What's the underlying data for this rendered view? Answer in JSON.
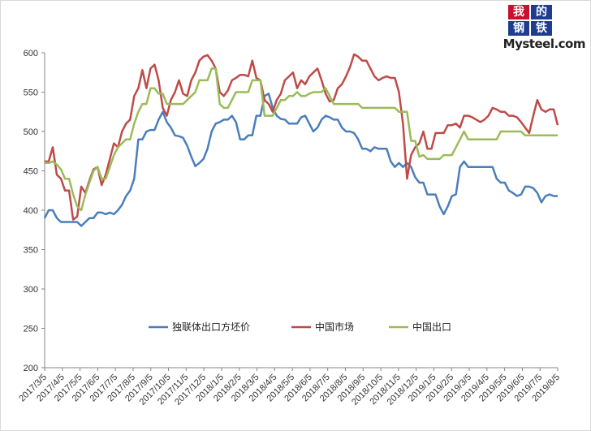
{
  "logo": {
    "chars": [
      "我",
      "的",
      "钢",
      "铁"
    ],
    "brand": "Mysteel.com"
  },
  "chart_data": {
    "type": "line",
    "title": "",
    "xlabel": "",
    "ylabel": "",
    "ylim": [
      200,
      600
    ],
    "yticks": [
      200,
      250,
      300,
      350,
      400,
      450,
      500,
      550,
      600
    ],
    "grid": false,
    "legend_position": "bottom-center",
    "xticks": [
      "2017/3/5",
      "2017/4/5",
      "2017/5/5",
      "2017/6/5",
      "2017/7/5",
      "2017/8/5",
      "2017/9/5",
      "2017/10/5",
      "2017/11/5",
      "2017/12/5",
      "2018/1/5",
      "2018/2/5",
      "2018/3/5",
      "2018/4/5",
      "2018/5/5",
      "2018/6/5",
      "2018/7/5",
      "2018/8/5",
      "2018/9/5",
      "2018/10/5",
      "2018/11/5",
      "2018/12/5",
      "2019/1/5",
      "2019/2/5",
      "2019/3/5",
      "2019/4/5",
      "2019/5/5",
      "2019/6/5",
      "2019/7/5",
      "2019/8/5"
    ],
    "series": [
      {
        "name": "独联体出口方坯价",
        "color": "#4a7ebb",
        "values": [
          390,
          400,
          400,
          390,
          385,
          385,
          385,
          385,
          385,
          380,
          385,
          390,
          390,
          397,
          397,
          395,
          397,
          395,
          400,
          407,
          418,
          425,
          440,
          490,
          490,
          500,
          502,
          502,
          515,
          525,
          512,
          505,
          495,
          494,
          492,
          482,
          468,
          456,
          460,
          465,
          478,
          500,
          510,
          512,
          515,
          515,
          520,
          512,
          490,
          490,
          495,
          495,
          520,
          520,
          545,
          548,
          530,
          520,
          516,
          515,
          510,
          510,
          510,
          518,
          520,
          510,
          500,
          505,
          515,
          520,
          518,
          515,
          515,
          505,
          500,
          500,
          498,
          490,
          478,
          478,
          475,
          480,
          478,
          478,
          478,
          462,
          455,
          460,
          455,
          460,
          455,
          442,
          435,
          435,
          420,
          420,
          420,
          405,
          395,
          405,
          418,
          420,
          455,
          462,
          455,
          455,
          455,
          455,
          455,
          455,
          455,
          440,
          435,
          435,
          425,
          422,
          418,
          420,
          430,
          430,
          428,
          422,
          410,
          418,
          420,
          418,
          418
        ]
      },
      {
        "name": "中国市场",
        "color": "#be4b48",
        "values": [
          462,
          462,
          480,
          445,
          440,
          425,
          425,
          388,
          392,
          430,
          422,
          438,
          452,
          455,
          432,
          445,
          465,
          485,
          480,
          500,
          510,
          515,
          545,
          555,
          578,
          555,
          580,
          585,
          565,
          530,
          520,
          540,
          550,
          565,
          548,
          545,
          565,
          575,
          590,
          595,
          597,
          590,
          580,
          550,
          545,
          552,
          565,
          568,
          572,
          572,
          570,
          590,
          568,
          565,
          540,
          535,
          525,
          540,
          548,
          565,
          570,
          575,
          555,
          565,
          560,
          570,
          575,
          580,
          565,
          548,
          538,
          540,
          555,
          560,
          570,
          582,
          598,
          595,
          590,
          590,
          580,
          570,
          565,
          568,
          570,
          568,
          568,
          550,
          510,
          440,
          470,
          480,
          485,
          500,
          478,
          478,
          498,
          498,
          498,
          508,
          508,
          510,
          505,
          520,
          520,
          518,
          515,
          512,
          515,
          520,
          530,
          528,
          525,
          525,
          520,
          520,
          518,
          512,
          505,
          498,
          520,
          540,
          528,
          525,
          528,
          528,
          508
        ]
      },
      {
        "name": "中国出口",
        "color": "#9bbb59",
        "values": [
          460,
          460,
          462,
          458,
          452,
          440,
          440,
          420,
          405,
          400,
          420,
          435,
          450,
          455,
          440,
          440,
          455,
          470,
          480,
          485,
          490,
          490,
          510,
          525,
          535,
          535,
          555,
          555,
          548,
          548,
          535,
          535,
          535,
          535,
          535,
          540,
          545,
          550,
          565,
          565,
          565,
          580,
          580,
          535,
          530,
          530,
          540,
          550,
          550,
          550,
          550,
          565,
          565,
          565,
          520,
          520,
          520,
          530,
          540,
          540,
          545,
          545,
          550,
          545,
          545,
          548,
          550,
          550,
          550,
          555,
          545,
          535,
          535,
          535,
          535,
          535,
          535,
          535,
          530,
          530,
          530,
          530,
          530,
          530,
          530,
          530,
          530,
          525,
          525,
          525,
          488,
          488,
          468,
          470,
          465,
          465,
          465,
          465,
          470,
          470,
          470,
          480,
          490,
          500,
          490,
          490,
          490,
          490,
          490,
          490,
          490,
          490,
          500,
          500,
          500,
          500,
          500,
          500,
          495,
          495,
          495,
          495,
          495,
          495,
          495,
          495,
          495
        ]
      }
    ]
  }
}
